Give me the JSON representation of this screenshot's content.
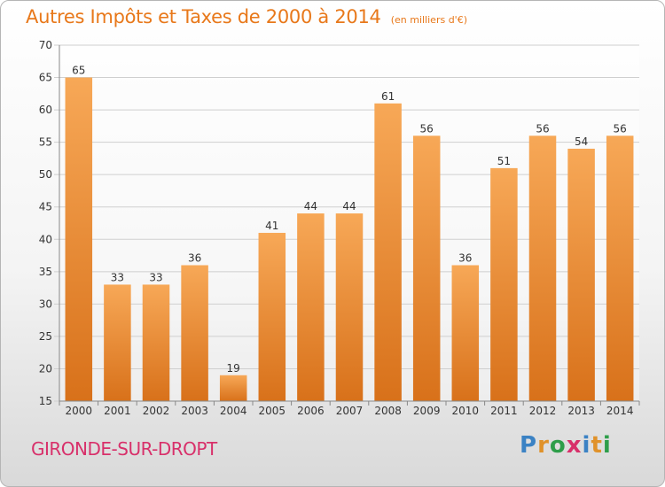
{
  "title": "Autres Impôts et Taxes de 2000 à 2014",
  "subtitle": "(en milliers d'€)",
  "footer_town": "GIRONDE-SUR-DROPT",
  "logo": {
    "letters": [
      "P",
      "r",
      "o",
      "x",
      "i",
      "t",
      "i"
    ],
    "colors": [
      "#3b82c4",
      "#e0922a",
      "#2e9e4a",
      "#d8306a",
      "#3b82c4",
      "#e0922a",
      "#2e9e4a"
    ]
  },
  "colors": {
    "bar_light": "#f7a857",
    "bar_dark": "#d8711a",
    "title": "#e8781a",
    "town": "#d8306a"
  },
  "chart_data": {
    "type": "bar",
    "categories": [
      "2000",
      "2001",
      "2002",
      "2003",
      "2004",
      "2005",
      "2006",
      "2007",
      "2008",
      "2009",
      "2010",
      "2011",
      "2012",
      "2013",
      "2014"
    ],
    "values": [
      65,
      33,
      33,
      36,
      19,
      41,
      44,
      44,
      61,
      56,
      36,
      51,
      56,
      54,
      56
    ],
    "yticks": [
      15,
      20,
      25,
      30,
      35,
      40,
      45,
      50,
      55,
      60,
      65,
      70
    ],
    "ylim": [
      15,
      70
    ],
    "grid": "horizontal",
    "legend": "none"
  }
}
